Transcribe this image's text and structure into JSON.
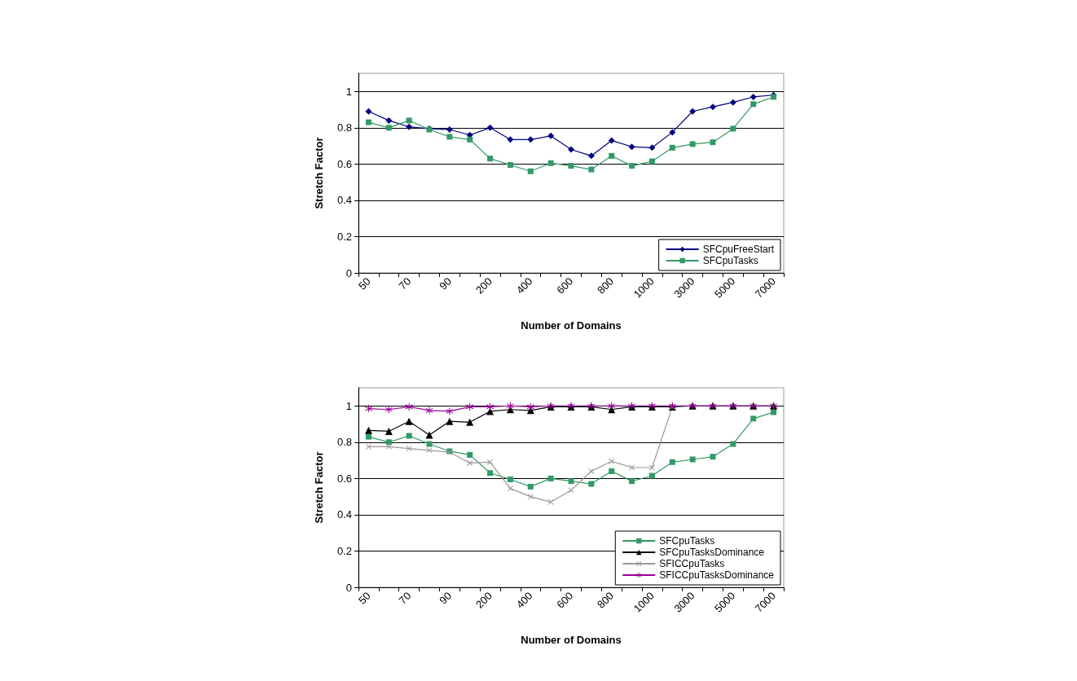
{
  "chart_data": [
    {
      "type": "line",
      "xlabel": "Number of Domains",
      "ylabel": "Stretch Factor",
      "categories": [
        "50",
        null,
        "70",
        null,
        "90",
        null,
        "200",
        null,
        "400",
        null,
        "600",
        null,
        "800",
        null,
        "1000",
        null,
        "3000",
        null,
        "5000",
        null,
        "7000"
      ],
      "series": [
        {
          "name": "SFCpuFreeStart",
          "color": "#000080",
          "marker": "diamond",
          "values": [
            0.89,
            0.84,
            0.805,
            0.795,
            0.79,
            0.76,
            0.8,
            0.735,
            0.735,
            0.755,
            0.68,
            0.645,
            0.73,
            0.695,
            0.69,
            0.775,
            0.89,
            0.915,
            0.94,
            0.97,
            0.98
          ]
        },
        {
          "name": "SFCpuTasks",
          "color": "#339966",
          "marker": "square",
          "values": [
            0.83,
            0.8,
            0.84,
            0.79,
            0.75,
            0.735,
            0.63,
            0.595,
            0.56,
            0.605,
            0.59,
            0.57,
            0.645,
            0.59,
            0.615,
            0.69,
            0.71,
            0.72,
            0.795,
            0.93,
            0.97
          ]
        }
      ],
      "ylim": [
        0,
        1.1
      ],
      "yticks": [
        0,
        0.2,
        0.4,
        0.6,
        0.8,
        1
      ],
      "grid": "y",
      "legend": "bottom right",
      "line_style": "solid"
    },
    {
      "type": "line",
      "xlabel": "Number of Domains",
      "ylabel": "Stretch Factor",
      "categories": [
        "50",
        null,
        "70",
        null,
        "90",
        null,
        "200",
        null,
        "400",
        null,
        "600",
        null,
        "800",
        null,
        "1000",
        null,
        "3000",
        null,
        "5000",
        null,
        "7000"
      ],
      "series": [
        {
          "name": "SFCpuTasks",
          "color": "#339966",
          "marker": "square",
          "values": [
            0.83,
            0.8,
            0.835,
            0.79,
            0.75,
            0.73,
            0.63,
            0.595,
            0.555,
            0.6,
            0.585,
            0.57,
            0.64,
            0.585,
            0.615,
            0.69,
            0.705,
            0.72,
            0.79,
            0.93,
            0.965
          ]
        },
        {
          "name": "SFCpuTasksDominance",
          "color": "#000000",
          "marker": "triangle",
          "values": [
            0.865,
            0.86,
            0.915,
            0.84,
            0.915,
            0.91,
            0.97,
            0.98,
            0.975,
            0.995,
            0.995,
            0.995,
            0.98,
            0.995,
            0.995,
            0.995,
            1,
            1,
            1,
            1,
            1
          ]
        },
        {
          "name": "SFICCpuTasks",
          "color": "#999999",
          "marker": "cross",
          "values": [
            0.775,
            0.775,
            0.765,
            0.755,
            0.745,
            0.685,
            0.69,
            0.545,
            0.5,
            0.47,
            0.535,
            0.64,
            0.695,
            0.66,
            0.66,
            0.995,
            null,
            null,
            null,
            null,
            null
          ]
        },
        {
          "name": "SFICCpuTasksDominance",
          "color": "#990099",
          "marker": "star",
          "values": [
            0.985,
            0.98,
            0.995,
            0.975,
            0.97,
            0.995,
            0.995,
            1,
            0.995,
            1,
            1,
            1,
            1,
            1,
            1,
            1,
            1,
            1,
            1,
            1,
            1
          ]
        }
      ],
      "ylim": [
        0,
        1.1
      ],
      "yticks": [
        0,
        0.2,
        0.4,
        0.6,
        0.8,
        1
      ],
      "grid": "y",
      "legend": "bottom right",
      "line_style": "solid"
    }
  ]
}
